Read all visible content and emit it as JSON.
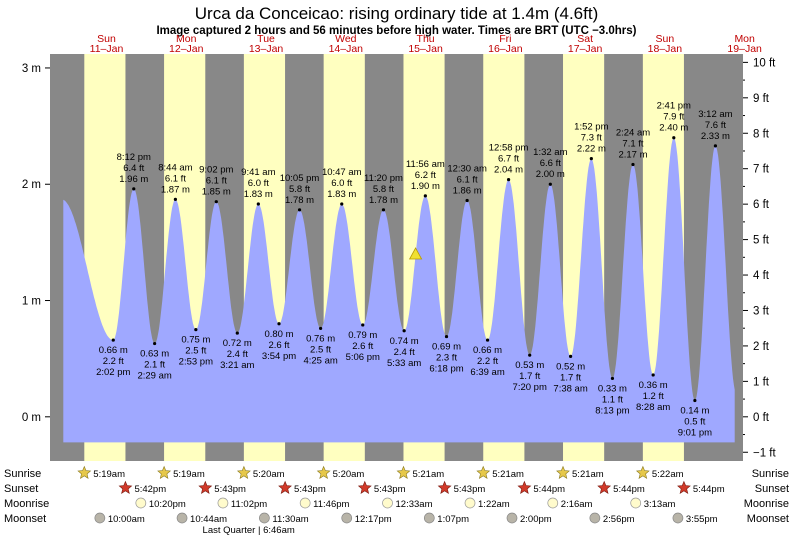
{
  "title": "Urca da Conceicao: rising  ordinary tide at 1.4m (4.6ft)",
  "subtitle": "Image captured 2 hours and 56 minutes before high water. Times are BRT (UTC −3.0hrs)",
  "colors": {
    "day": "#ffffc0",
    "night": "#888888",
    "tide": "#9fa8ff",
    "day_label": "#c00000",
    "sun": "#e6c84a",
    "sunset": "#d03a2a",
    "moonrise": "#fffbcc",
    "moonset": "#b8b4a8"
  },
  "chart_data": {
    "type": "area",
    "x_unit": "hours from 00:00 Sun 11-Jan (BRT)",
    "ylabel_left": "m",
    "ylabel_right": "ft",
    "ylim": [
      -0.38,
      3.12
    ],
    "y_ticks_m": [
      "0 m",
      "1 m",
      "2 m",
      "3 m"
    ],
    "y_ticks_ft": [
      "−1 ft",
      "0 ft",
      "1 ft",
      "2 ft",
      "3 ft",
      "4 ft",
      "5 ft",
      "6 ft",
      "7 ft",
      "8 ft",
      "9 ft",
      "10 ft"
    ],
    "x_range": [
      -5.0,
      203.5
    ],
    "days": [
      {
        "name": "Sun",
        "date": "11–Jan"
      },
      {
        "name": "Mon",
        "date": "12–Jan"
      },
      {
        "name": "Tue",
        "date": "13–Jan"
      },
      {
        "name": "Wed",
        "date": "14–Jan"
      },
      {
        "name": "Thu",
        "date": "15–Jan"
      },
      {
        "name": "Fri",
        "date": "16–Jan"
      },
      {
        "name": "Sat",
        "date": "17–Jan"
      },
      {
        "name": "Sun",
        "date": "18–Jan"
      },
      {
        "name": "Mon",
        "date": "19–Jan"
      }
    ],
    "daylight": [
      {
        "sunrise": 5.32,
        "sunset": 17.7
      },
      {
        "sunrise": 29.32,
        "sunset": 41.72
      },
      {
        "sunrise": 53.33,
        "sunset": 65.72
      },
      {
        "sunrise": 77.33,
        "sunset": 89.72
      },
      {
        "sunrise": 101.35,
        "sunset": 113.72
      },
      {
        "sunrise": 125.35,
        "sunset": 137.73
      },
      {
        "sunrise": 149.35,
        "sunset": 161.73
      },
      {
        "sunrise": 173.37,
        "sunset": 185.73
      }
    ],
    "tides": [
      {
        "x": -1.5,
        "m": 1.87,
        "type": "high",
        "labels": []
      },
      {
        "x": 14.03,
        "m": 0.66,
        "type": "low",
        "labels": [
          "0.66 m",
          "2.2 ft",
          "2:02 pm"
        ]
      },
      {
        "x": 20.2,
        "m": 1.96,
        "type": "high",
        "labels": [
          "8:12 pm",
          "6.4 ft",
          "1.96 m"
        ]
      },
      {
        "x": 26.48,
        "m": 0.63,
        "type": "low",
        "labels": [
          "0.63 m",
          "2.1 ft",
          "2:29 am"
        ]
      },
      {
        "x": 32.73,
        "m": 1.87,
        "type": "high",
        "labels": [
          "8:44 am",
          "6.1 ft",
          "1.87 m"
        ]
      },
      {
        "x": 38.88,
        "m": 0.75,
        "type": "low",
        "labels": [
          "0.75 m",
          "2.5 ft",
          "2:53 pm"
        ]
      },
      {
        "x": 45.03,
        "m": 1.85,
        "type": "high",
        "labels": [
          "9:02 pm",
          "6.1 ft",
          "1.85 m"
        ]
      },
      {
        "x": 51.35,
        "m": 0.72,
        "type": "low",
        "labels": [
          "0.72 m",
          "2.4 ft",
          "3:21 am"
        ]
      },
      {
        "x": 57.68,
        "m": 1.83,
        "type": "high",
        "labels": [
          "9:41 am",
          "6.0 ft",
          "1.83 m"
        ]
      },
      {
        "x": 63.9,
        "m": 0.8,
        "type": "low",
        "labels": [
          "0.80 m",
          "2.6 ft",
          "3:54 pm"
        ]
      },
      {
        "x": 70.08,
        "m": 1.78,
        "type": "high",
        "labels": [
          "10:05 pm",
          "5.8 ft",
          "1.78 m"
        ]
      },
      {
        "x": 76.42,
        "m": 0.76,
        "type": "low",
        "labels": [
          "0.76 m",
          "2.5 ft",
          "4:25 am"
        ]
      },
      {
        "x": 82.78,
        "m": 1.83,
        "type": "high",
        "labels": [
          "10:47 am",
          "6.0 ft",
          "1.83 m"
        ]
      },
      {
        "x": 89.1,
        "m": 0.79,
        "type": "low",
        "labels": [
          "0.79 m",
          "2.6 ft",
          "5:06 pm"
        ]
      },
      {
        "x": 95.33,
        "m": 1.78,
        "type": "high",
        "labels": [
          "11:20 pm",
          "5.8 ft",
          "1.78 m"
        ]
      },
      {
        "x": 101.55,
        "m": 0.74,
        "type": "low",
        "labels": [
          "0.74 m",
          "2.4 ft",
          "5:33 am"
        ]
      },
      {
        "x": 107.93,
        "m": 1.9,
        "type": "high",
        "labels": [
          "11:56 am",
          "6.2 ft",
          "1.90 m"
        ]
      },
      {
        "x": 114.3,
        "m": 0.69,
        "type": "low",
        "labels": [
          "0.69 m",
          "2.3 ft",
          "6:18 pm"
        ]
      },
      {
        "x": 120.5,
        "m": 1.86,
        "type": "high",
        "labels": [
          "12:30 am",
          "6.1 ft",
          "1.86 m"
        ]
      },
      {
        "x": 126.65,
        "m": 0.66,
        "type": "low",
        "labels": [
          "0.66 m",
          "2.2 ft",
          "6:39 am"
        ]
      },
      {
        "x": 132.97,
        "m": 2.04,
        "type": "high",
        "labels": [
          "12:58 pm",
          "6.7 ft",
          "2.04 m"
        ]
      },
      {
        "x": 139.33,
        "m": 0.53,
        "type": "low",
        "labels": [
          "0.53 m",
          "1.7 ft",
          "7:20 pm"
        ]
      },
      {
        "x": 145.53,
        "m": 2.0,
        "type": "high",
        "labels": [
          "1:32 am",
          "6.6 ft",
          "2.00 m"
        ]
      },
      {
        "x": 151.63,
        "m": 0.52,
        "type": "low",
        "labels": [
          "0.52 m",
          "1.7 ft",
          "7:38 am"
        ]
      },
      {
        "x": 157.87,
        "m": 2.22,
        "type": "high",
        "labels": [
          "1:52 pm",
          "7.3 ft",
          "2.22 m"
        ]
      },
      {
        "x": 164.22,
        "m": 0.33,
        "type": "low",
        "labels": [
          "0.33 m",
          "1.1 ft",
          "8:13 pm"
        ]
      },
      {
        "x": 170.4,
        "m": 2.17,
        "type": "high",
        "labels": [
          "2:24 am",
          "7.1 ft",
          "2.17 m"
        ]
      },
      {
        "x": 176.47,
        "m": 0.36,
        "type": "low",
        "labels": [
          "0.36 m",
          "1.2 ft",
          "8:28 am"
        ]
      },
      {
        "x": 182.68,
        "m": 2.4,
        "type": "high",
        "labels": [
          "2:41 pm",
          "7.9 ft",
          "2.40 m"
        ]
      },
      {
        "x": 189.02,
        "m": 0.14,
        "type": "low",
        "labels": [
          "0.14 m",
          "0.5 ft",
          "9:01 pm"
        ]
      },
      {
        "x": 195.2,
        "m": 2.33,
        "type": "high",
        "labels": [
          "3:12 am",
          "7.6 ft",
          "2.33 m"
        ]
      },
      {
        "x": 201.5,
        "m": 0.2,
        "type": "low",
        "labels": []
      }
    ],
    "curve_start_x": -1.0,
    "curve_end_x": 201.0,
    "current": {
      "x": 105.0,
      "m": 1.4
    }
  },
  "rows": {
    "sunrise": {
      "label": "Sunrise",
      "events": [
        {
          "x": 5.32,
          "text": "5:19am"
        },
        {
          "x": 29.32,
          "text": "5:19am"
        },
        {
          "x": 53.33,
          "text": "5:20am"
        },
        {
          "x": 77.33,
          "text": "5:20am"
        },
        {
          "x": 101.35,
          "text": "5:21am"
        },
        {
          "x": 125.35,
          "text": "5:21am"
        },
        {
          "x": 149.35,
          "text": "5:21am"
        },
        {
          "x": 173.37,
          "text": "5:22am"
        }
      ]
    },
    "sunset": {
      "label": "Sunset",
      "events": [
        {
          "x": 17.7,
          "text": "5:42pm"
        },
        {
          "x": 41.72,
          "text": "5:43pm"
        },
        {
          "x": 65.72,
          "text": "5:43pm"
        },
        {
          "x": 89.72,
          "text": "5:43pm"
        },
        {
          "x": 113.72,
          "text": "5:43pm"
        },
        {
          "x": 137.73,
          "text": "5:44pm"
        },
        {
          "x": 161.73,
          "text": "5:44pm"
        },
        {
          "x": 185.73,
          "text": "5:44pm"
        }
      ]
    },
    "moonrise": {
      "label": "Moonrise",
      "events": [
        {
          "x": 22.33,
          "text": "10:20pm"
        },
        {
          "x": 47.03,
          "text": "11:02pm"
        },
        {
          "x": 71.77,
          "text": "11:46pm"
        },
        {
          "x": 96.55,
          "text": "12:33am"
        },
        {
          "x": 121.37,
          "text": "1:22am"
        },
        {
          "x": 146.27,
          "text": "2:16am"
        },
        {
          "x": 171.22,
          "text": "3:13am"
        }
      ]
    },
    "moonset": {
      "label": "Moonset",
      "events": [
        {
          "x": 10.0,
          "text": "10:00am"
        },
        {
          "x": 34.73,
          "text": "10:44am"
        },
        {
          "x": 59.5,
          "text": "11:30am"
        },
        {
          "x": 84.28,
          "text": "12:17pm"
        },
        {
          "x": 109.12,
          "text": "1:07pm"
        },
        {
          "x": 134.0,
          "text": "2:00pm"
        },
        {
          "x": 158.93,
          "text": "2:56pm"
        },
        {
          "x": 183.92,
          "text": "3:55pm"
        }
      ]
    },
    "moon_phase": {
      "x": 54.77,
      "text": "Last Quarter | 6:46am"
    }
  }
}
